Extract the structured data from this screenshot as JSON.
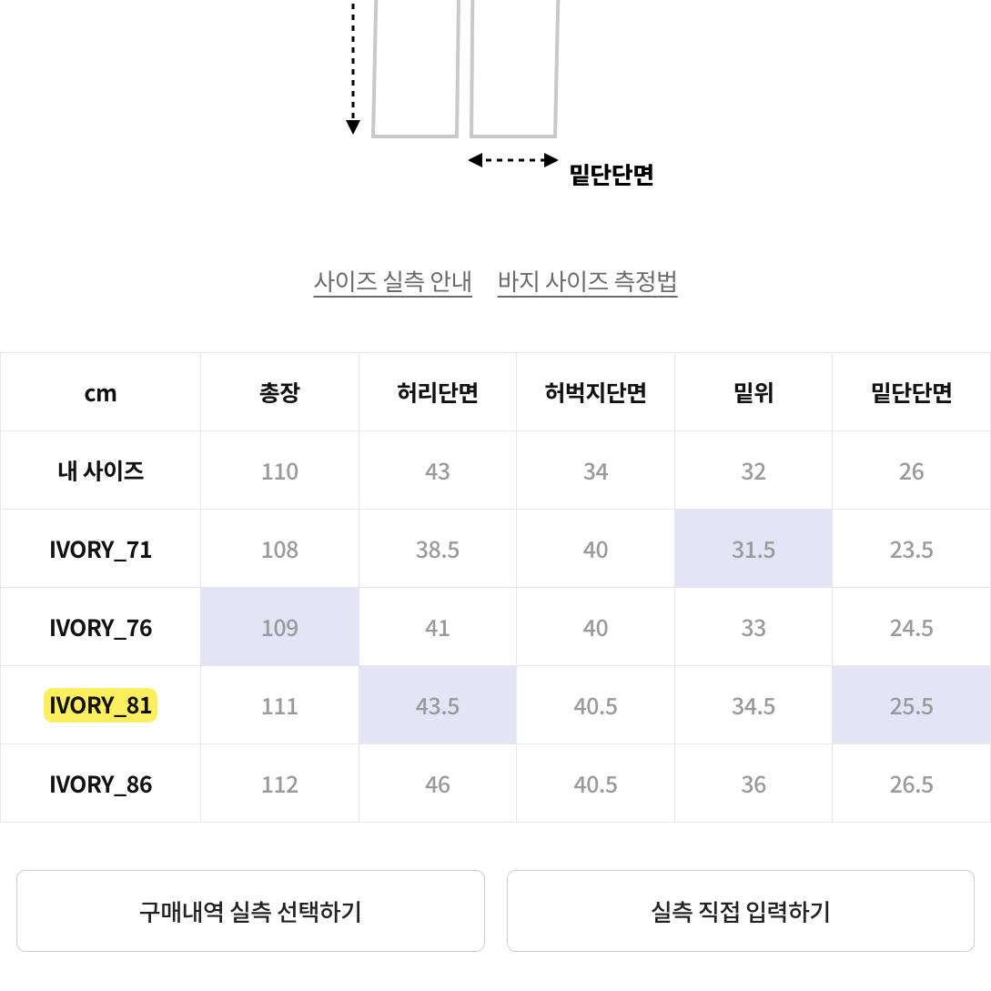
{
  "diagram": {
    "hem_label": "밑단단면",
    "outline_color": "#c9c9c9",
    "arrow_color": "#000000"
  },
  "links": {
    "link1": "사이즈 실측 안내",
    "link2": "바지 사이즈 측정법"
  },
  "size_table": {
    "columns": [
      "cm",
      "총장",
      "허리단면",
      "허벅지단면",
      "밑위",
      "밑단단면"
    ],
    "rows": [
      {
        "label": "내 사이즈",
        "vals": [
          "110",
          "43",
          "34",
          "32",
          "26"
        ],
        "highlighted_label": false,
        "hl_cols": []
      },
      {
        "label": "IVORY_71",
        "vals": [
          "108",
          "38.5",
          "40",
          "31.5",
          "23.5"
        ],
        "highlighted_label": false,
        "hl_cols": [
          3
        ]
      },
      {
        "label": "IVORY_76",
        "vals": [
          "109",
          "41",
          "40",
          "33",
          "24.5"
        ],
        "highlighted_label": false,
        "hl_cols": [
          0
        ]
      },
      {
        "label": "IVORY_81",
        "vals": [
          "111",
          "43.5",
          "40.5",
          "34.5",
          "25.5"
        ],
        "highlighted_label": true,
        "hl_cols": [
          1,
          4
        ]
      },
      {
        "label": "IVORY_86",
        "vals": [
          "112",
          "46",
          "40.5",
          "36",
          "26.5"
        ],
        "highlighted_label": false,
        "hl_cols": []
      }
    ],
    "highlight_bg": "#e4e4f7",
    "marker_bg": "#fcef5f",
    "border_color": "#e8e8e8",
    "header_color": "#111111",
    "value_color": "#9a9a9a"
  },
  "buttons": {
    "btn1": "구매내역 실측 선택하기",
    "btn2": "실측 직접 입력하기"
  }
}
